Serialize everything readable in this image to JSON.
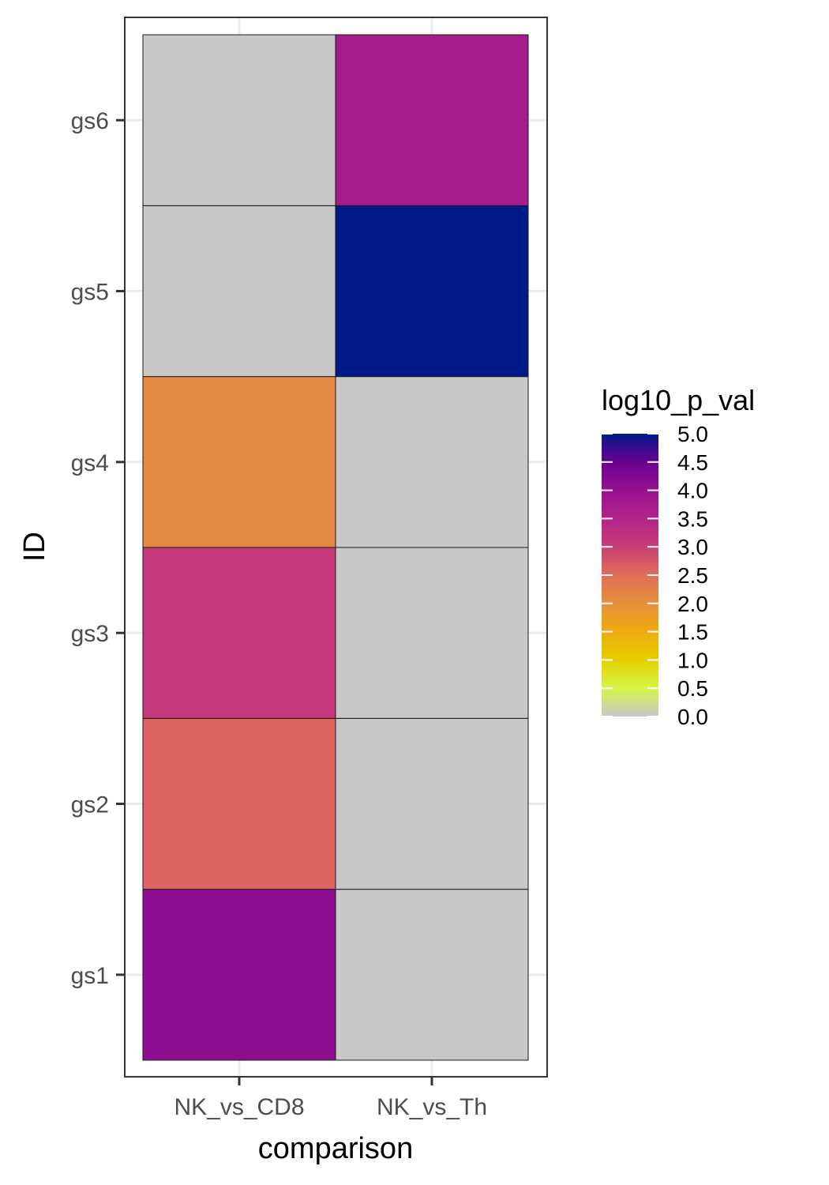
{
  "chart_data": {
    "type": "heatmap",
    "xlabel": "comparison",
    "ylabel": "ID",
    "x_categories": [
      "NK_vs_CD8",
      "NK_vs_Th"
    ],
    "y_categories": [
      "gs1",
      "gs2",
      "gs3",
      "gs4",
      "gs5",
      "gs6"
    ],
    "cells": [
      {
        "x": "NK_vs_CD8",
        "y": "gs1",
        "value": 4.1
      },
      {
        "x": "NK_vs_CD8",
        "y": "gs2",
        "value": 2.6
      },
      {
        "x": "NK_vs_CD8",
        "y": "gs3",
        "value": 3.1
      },
      {
        "x": "NK_vs_CD8",
        "y": "gs4",
        "value": 2.1
      },
      {
        "x": "NK_vs_CD8",
        "y": "gs5",
        "value": 0.0
      },
      {
        "x": "NK_vs_CD8",
        "y": "gs6",
        "value": 0.0
      },
      {
        "x": "NK_vs_Th",
        "y": "gs1",
        "value": 0.0
      },
      {
        "x": "NK_vs_Th",
        "y": "gs2",
        "value": 0.0
      },
      {
        "x": "NK_vs_Th",
        "y": "gs3",
        "value": 0.0
      },
      {
        "x": "NK_vs_Th",
        "y": "gs4",
        "value": 0.0
      },
      {
        "x": "NK_vs_Th",
        "y": "gs5",
        "value": 5.0
      },
      {
        "x": "NK_vs_Th",
        "y": "gs6",
        "value": 3.7
      }
    ],
    "legend": {
      "title": "log10_p_val",
      "position": "right",
      "range": [
        0,
        5
      ],
      "ticks": [
        {
          "value": 0.0,
          "label": "0.0"
        },
        {
          "value": 0.5,
          "label": "0.5"
        },
        {
          "value": 1.0,
          "label": "1.0"
        },
        {
          "value": 1.5,
          "label": "1.5"
        },
        {
          "value": 2.0,
          "label": "2.0"
        },
        {
          "value": 2.5,
          "label": "2.5"
        },
        {
          "value": 3.0,
          "label": "3.0"
        },
        {
          "value": 3.5,
          "label": "3.5"
        },
        {
          "value": 4.0,
          "label": "4.0"
        },
        {
          "value": 4.5,
          "label": "4.5"
        },
        {
          "value": 5.0,
          "label": "5.0"
        }
      ]
    },
    "colorscale": [
      {
        "value": 0.0,
        "color": "#c8c8c8"
      },
      {
        "value": 0.5,
        "color": "#d6f548"
      },
      {
        "value": 1.0,
        "color": "#e4d000"
      },
      {
        "value": 1.5,
        "color": "#eeaa10"
      },
      {
        "value": 2.0,
        "color": "#e8903a"
      },
      {
        "value": 2.5,
        "color": "#e06e58"
      },
      {
        "value": 3.0,
        "color": "#c83e76"
      },
      {
        "value": 3.5,
        "color": "#b02488"
      },
      {
        "value": 4.0,
        "color": "#981090"
      },
      {
        "value": 4.5,
        "color": "#680290"
      },
      {
        "value": 5.0,
        "color": "#001a8a"
      }
    ],
    "grid": true
  }
}
